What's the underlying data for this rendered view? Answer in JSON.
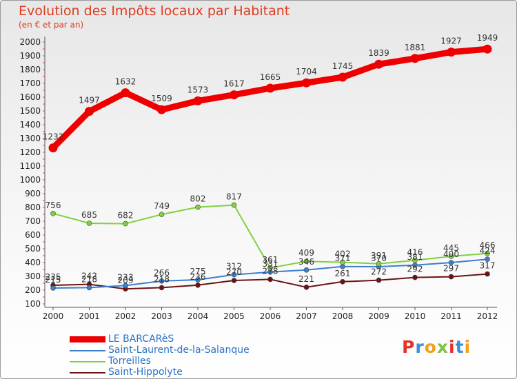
{
  "header": {
    "title": "Evolution des Impôts locaux par Habitant",
    "subtitle": "(en € et par an)"
  },
  "logo": {
    "text": "Proxiti",
    "letters": [
      {
        "ch": "P",
        "color": "#e8312a"
      },
      {
        "ch": "r",
        "color": "#3a8fd6"
      },
      {
        "ch": "o",
        "color": "#f2a11e"
      },
      {
        "ch": "x",
        "color": "#7cc242"
      },
      {
        "ch": "i",
        "color": "#e8312a"
      },
      {
        "ch": "t",
        "color": "#3a8fd6"
      },
      {
        "ch": "i",
        "color": "#f2a11e"
      }
    ]
  },
  "chart_data": {
    "type": "line",
    "x": [
      "2000",
      "2001",
      "2002",
      "2003",
      "2004",
      "2005",
      "2006",
      "2007",
      "2008",
      "2009",
      "2010",
      "2011",
      "2012"
    ],
    "ylim": [
      100,
      2000
    ],
    "yticks": [
      100,
      200,
      300,
      400,
      500,
      600,
      700,
      800,
      900,
      1000,
      1100,
      1200,
      1300,
      1400,
      1500,
      1600,
      1700,
      1800,
      1900,
      2000
    ],
    "grid": false,
    "legend_position": "bottom-left",
    "series": [
      {
        "name": "LE BARCARèS",
        "color": "#ee0000",
        "values": [
          1232,
          1497,
          1632,
          1509,
          1573,
          1617,
          1665,
          1704,
          1745,
          1839,
          1881,
          1927,
          1949
        ]
      },
      {
        "name": "Saint-Laurent-de-la-Salanque",
        "color": "#3a7fcf",
        "values": [
          215,
          218,
          233,
          266,
          275,
          312,
          331,
          346,
          371,
          370,
          381,
          400,
          424
        ]
      },
      {
        "name": "Torreilles",
        "color": "#80d040",
        "values": [
          756,
          685,
          682,
          749,
          802,
          817,
          361,
          409,
          402,
          391,
          416,
          445,
          466
        ]
      },
      {
        "name": "Saint-Hippolyte",
        "color": "#6b1212",
        "values": [
          235,
          242,
          209,
          218,
          236,
          270,
          278,
          221,
          261,
          272,
          292,
          297,
          317
        ]
      }
    ]
  }
}
